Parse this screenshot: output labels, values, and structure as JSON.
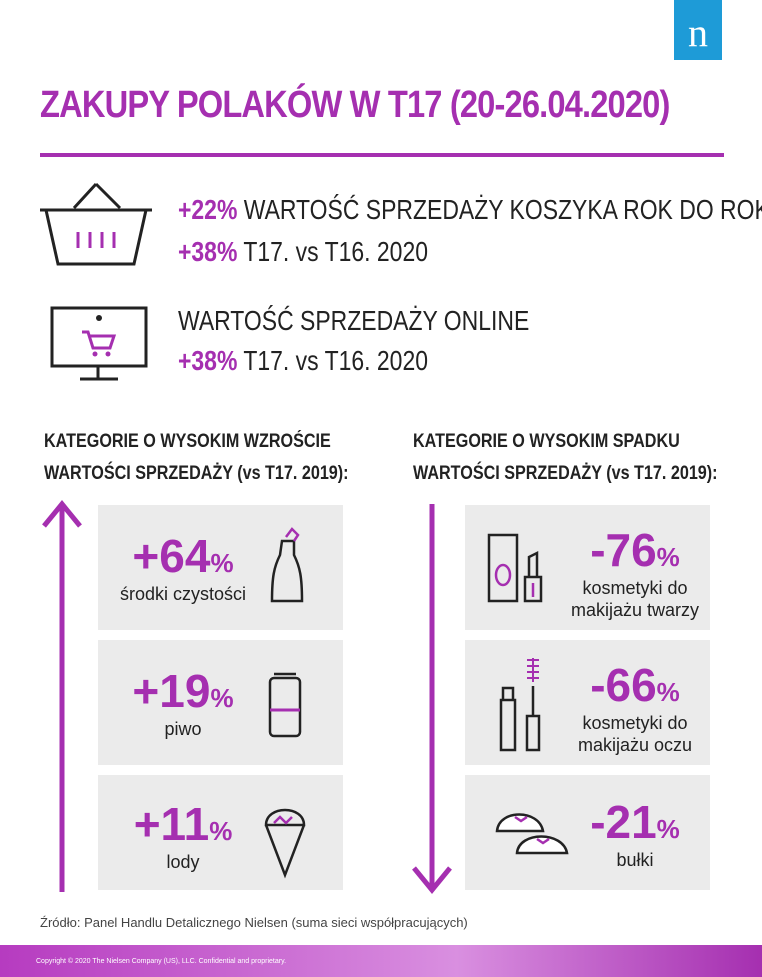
{
  "logo": "n",
  "title": "ZAKUPY POLAKÓW W T17 (20-26.04.2020)",
  "basket": {
    "lines": [
      {
        "highlight": "+22%",
        "text": "WARTOŚĆ SPRZEDAŻY KOSZYKA ROK DO ROKU"
      },
      {
        "highlight": "+38%",
        "text": "T17. vs T16. 2020"
      }
    ]
  },
  "online": {
    "heading": "WARTOŚĆ SPRZEDAŻY ONLINE",
    "highlight": "+38%",
    "text": "T17. vs T16. 2020"
  },
  "growth": {
    "heading_lines": [
      "KATEGORIE O WYSOKIM WZROŚCIE",
      "WARTOŚCI SPRZEDAŻY (vs T17. 2019):"
    ],
    "items": [
      {
        "value": "+64",
        "unit": "%",
        "label": "środki czystości"
      },
      {
        "value": "+19",
        "unit": "%",
        "label": "piwo"
      },
      {
        "value": "+11",
        "unit": "%",
        "label": "lody"
      }
    ]
  },
  "decline": {
    "heading_lines": [
      "KATEGORIE O WYSOKIM SPADKU",
      "WARTOŚCI SPRZEDAŻY (vs T17. 2019):"
    ],
    "items": [
      {
        "value": "-76",
        "unit": "%",
        "label": "kosmetyki do makijażu twarzy"
      },
      {
        "value": "-66",
        "unit": "%",
        "label": "kosmetyki do makijażu oczu"
      },
      {
        "value": "-21",
        "unit": "%",
        "label": "bułki"
      }
    ]
  },
  "source": "Źródło: Panel Handlu Detalicznego Nielsen (suma sieci współpracujących)",
  "copyright": "Copyright © 2020 The Nielsen Company (US), LLC. Confidential and proprietary."
}
